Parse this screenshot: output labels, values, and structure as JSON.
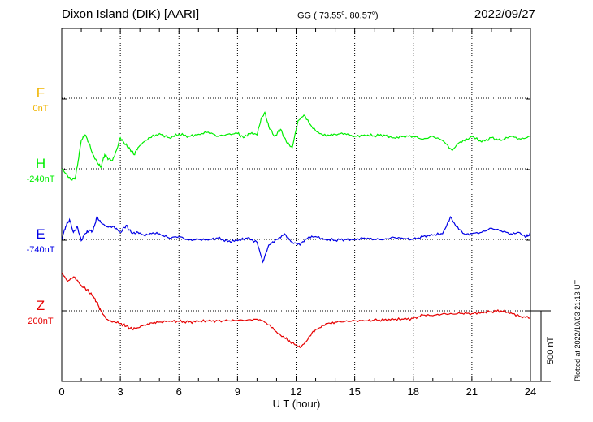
{
  "header": {
    "station": "Dixon Island (DIK)  [AARI]",
    "coord_prefix": "GG ( 73.55",
    "coord_mid": ",  80.57",
    "coord_suffix": ")",
    "date": "2022/09/27"
  },
  "footer": {
    "plotted": "Plotted at 2022/10/03 21:13 UT",
    "scale": "500 nT"
  },
  "colors": {
    "F": "#f0b400",
    "H": "#00ee00",
    "E": "#0000e6",
    "Z": "#e60000",
    "axis": "#000000"
  },
  "chart_data": {
    "type": "line",
    "title": "Dixon Island (DIK)  [AARI]",
    "xlabel": "U T (hour)",
    "ylabel": "",
    "xlim": [
      0,
      24
    ],
    "x_ticks": [
      0,
      3,
      6,
      9,
      12,
      15,
      18,
      21,
      24
    ],
    "x_tick_labels": [
      "0",
      "3",
      "6",
      "9",
      "12",
      "15",
      "18",
      "21",
      "24"
    ],
    "grid": true,
    "scale_bar_nT": 500,
    "series": [
      {
        "name": "F",
        "baseline_label": "0nT",
        "points": []
      },
      {
        "name": "H",
        "baseline_label": "-240nT",
        "points": [
          [
            0,
            -240
          ],
          [
            0.3,
            -290
          ],
          [
            0.5,
            -320
          ],
          [
            0.7,
            -300
          ],
          [
            0.85,
            -180
          ],
          [
            1.0,
            -40
          ],
          [
            1.2,
            0
          ],
          [
            1.4,
            -60
          ],
          [
            1.6,
            -140
          ],
          [
            1.8,
            -190
          ],
          [
            2.0,
            -230
          ],
          [
            2.2,
            -140
          ],
          [
            2.4,
            -170
          ],
          [
            2.6,
            -180
          ],
          [
            2.8,
            -110
          ],
          [
            3.0,
            -20
          ],
          [
            3.2,
            -60
          ],
          [
            3.5,
            -100
          ],
          [
            3.7,
            -140
          ],
          [
            3.9,
            -90
          ],
          [
            4.2,
            -50
          ],
          [
            4.5,
            -20
          ],
          [
            5.0,
            10
          ],
          [
            5.5,
            -20
          ],
          [
            6.0,
            5
          ],
          [
            6.5,
            -10
          ],
          [
            7.0,
            5
          ],
          [
            7.5,
            20
          ],
          [
            8.0,
            -10
          ],
          [
            8.5,
            5
          ],
          [
            9.0,
            10
          ],
          [
            9.3,
            -20
          ],
          [
            9.6,
            10
          ],
          [
            10.0,
            0
          ],
          [
            10.2,
            110
          ],
          [
            10.4,
            160
          ],
          [
            10.6,
            60
          ],
          [
            10.9,
            -10
          ],
          [
            11.2,
            40
          ],
          [
            11.5,
            -50
          ],
          [
            11.8,
            -90
          ],
          [
            12.1,
            100
          ],
          [
            12.4,
            140
          ],
          [
            12.8,
            60
          ],
          [
            13.2,
            10
          ],
          [
            13.6,
            0
          ],
          [
            14.0,
            5
          ],
          [
            14.5,
            10
          ],
          [
            15.0,
            -10
          ],
          [
            15.5,
            0
          ],
          [
            16.0,
            -5
          ],
          [
            16.5,
            0
          ],
          [
            17.0,
            -20
          ],
          [
            17.5,
            -10
          ],
          [
            18.0,
            -10
          ],
          [
            18.5,
            -30
          ],
          [
            19.0,
            -10
          ],
          [
            19.5,
            -40
          ],
          [
            20.0,
            -110
          ],
          [
            20.3,
            -60
          ],
          [
            20.6,
            -40
          ],
          [
            21.0,
            -10
          ],
          [
            21.5,
            -50
          ],
          [
            22.0,
            -20
          ],
          [
            22.5,
            -40
          ],
          [
            23.0,
            -10
          ],
          [
            23.5,
            -30
          ],
          [
            24.0,
            -10
          ]
        ]
      },
      {
        "name": "E",
        "baseline_label": "-740nT",
        "points": [
          [
            0,
            -740
          ],
          [
            0.2,
            -650
          ],
          [
            0.4,
            -600
          ],
          [
            0.6,
            -690
          ],
          [
            0.8,
            -650
          ],
          [
            1.0,
            -750
          ],
          [
            1.2,
            -700
          ],
          [
            1.4,
            -680
          ],
          [
            1.6,
            -680
          ],
          [
            1.8,
            -580
          ],
          [
            2.0,
            -620
          ],
          [
            2.3,
            -650
          ],
          [
            2.6,
            -650
          ],
          [
            3.0,
            -690
          ],
          [
            3.3,
            -640
          ],
          [
            3.6,
            -700
          ],
          [
            3.9,
            -690
          ],
          [
            4.2,
            -710
          ],
          [
            4.6,
            -700
          ],
          [
            5.0,
            -700
          ],
          [
            5.5,
            -730
          ],
          [
            6.0,
            -720
          ],
          [
            6.5,
            -745
          ],
          [
            7.0,
            -740
          ],
          [
            7.5,
            -745
          ],
          [
            8.0,
            -730
          ],
          [
            8.5,
            -755
          ],
          [
            9.0,
            -750
          ],
          [
            9.5,
            -730
          ],
          [
            10.0,
            -760
          ],
          [
            10.3,
            -900
          ],
          [
            10.6,
            -780
          ],
          [
            11.0,
            -740
          ],
          [
            11.4,
            -700
          ],
          [
            11.8,
            -760
          ],
          [
            12.2,
            -780
          ],
          [
            12.6,
            -730
          ],
          [
            13.0,
            -720
          ],
          [
            13.5,
            -740
          ],
          [
            14.0,
            -745
          ],
          [
            14.5,
            -740
          ],
          [
            15.0,
            -740
          ],
          [
            15.5,
            -730
          ],
          [
            16.0,
            -740
          ],
          [
            16.5,
            -740
          ],
          [
            17.0,
            -725
          ],
          [
            17.5,
            -735
          ],
          [
            18.0,
            -740
          ],
          [
            18.5,
            -720
          ],
          [
            19.0,
            -710
          ],
          [
            19.5,
            -700
          ],
          [
            19.9,
            -580
          ],
          [
            20.2,
            -650
          ],
          [
            20.6,
            -700
          ],
          [
            21.0,
            -700
          ],
          [
            21.5,
            -690
          ],
          [
            22.0,
            -660
          ],
          [
            22.5,
            -680
          ],
          [
            23.0,
            -700
          ],
          [
            23.4,
            -690
          ],
          [
            23.8,
            -720
          ],
          [
            24.0,
            -700
          ]
        ]
      },
      {
        "name": "Z",
        "baseline_label": "200nT",
        "points": [
          [
            0,
            470
          ],
          [
            0.3,
            410
          ],
          [
            0.6,
            440
          ],
          [
            1.0,
            380
          ],
          [
            1.3,
            350
          ],
          [
            1.6,
            300
          ],
          [
            1.8,
            260
          ],
          [
            2.0,
            200
          ],
          [
            2.3,
            140
          ],
          [
            2.6,
            120
          ],
          [
            3.0,
            110
          ],
          [
            3.3,
            90
          ],
          [
            3.6,
            70
          ],
          [
            3.9,
            80
          ],
          [
            4.2,
            100
          ],
          [
            4.6,
            115
          ],
          [
            5.0,
            120
          ],
          [
            5.5,
            125
          ],
          [
            6.0,
            125
          ],
          [
            6.5,
            120
          ],
          [
            7.0,
            125
          ],
          [
            7.5,
            128
          ],
          [
            8.0,
            128
          ],
          [
            8.5,
            130
          ],
          [
            9.0,
            132
          ],
          [
            9.5,
            135
          ],
          [
            10.0,
            140
          ],
          [
            10.3,
            130
          ],
          [
            10.6,
            100
          ],
          [
            11.0,
            50
          ],
          [
            11.4,
            10
          ],
          [
            11.7,
            -20
          ],
          [
            12.0,
            -40
          ],
          [
            12.2,
            -60
          ],
          [
            12.5,
            -20
          ],
          [
            12.8,
            40
          ],
          [
            13.2,
            80
          ],
          [
            13.6,
            110
          ],
          [
            14.0,
            120
          ],
          [
            14.5,
            125
          ],
          [
            15.0,
            130
          ],
          [
            15.5,
            128
          ],
          [
            16.0,
            133
          ],
          [
            16.5,
            135
          ],
          [
            17.0,
            138
          ],
          [
            17.5,
            140
          ],
          [
            18.0,
            145
          ],
          [
            18.5,
            170
          ],
          [
            19.0,
            165
          ],
          [
            19.5,
            178
          ],
          [
            20.0,
            178
          ],
          [
            20.5,
            182
          ],
          [
            21.0,
            180
          ],
          [
            21.5,
            188
          ],
          [
            22.0,
            195
          ],
          [
            22.5,
            200
          ],
          [
            23.0,
            185
          ],
          [
            23.5,
            160
          ],
          [
            24.0,
            150
          ]
        ]
      }
    ]
  }
}
